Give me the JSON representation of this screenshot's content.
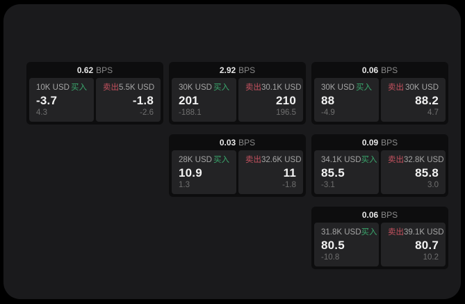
{
  "labels": {
    "buy": "买入",
    "sell": "卖出",
    "bps_unit": "BPS"
  },
  "colors": {
    "background_outer": "#000000",
    "window_background": "#1a1a1c",
    "card_background": "#0d0d0e",
    "panel_background": "#232325",
    "buy_green": "#3aa76d",
    "sell_red": "#c5525f"
  },
  "cards": [
    {
      "bps": "0.62",
      "buy": {
        "size": "10K USD",
        "price": "-3.7",
        "sub": "4.3"
      },
      "sell": {
        "size": "5.5K USD",
        "price": "-1.8",
        "sub": "-2.6"
      }
    },
    {
      "bps": "2.92",
      "buy": {
        "size": "30K USD",
        "price": "201",
        "sub": "-188.1"
      },
      "sell": {
        "size": "30.1K USD",
        "price": "210",
        "sub": "196.5"
      }
    },
    {
      "bps": "0.06",
      "buy": {
        "size": "30K USD",
        "price": "88",
        "sub": "-4.9"
      },
      "sell": {
        "size": "30K USD",
        "price": "88.2",
        "sub": "4.7"
      }
    },
    {
      "bps": "0.03",
      "buy": {
        "size": "28K USD",
        "price": "10.9",
        "sub": "1.3"
      },
      "sell": {
        "size": "32.6K USD",
        "price": "11",
        "sub": "-1.8"
      }
    },
    {
      "bps": "0.09",
      "buy": {
        "size": "34.1K USD",
        "price": "85.5",
        "sub": "-3.1"
      },
      "sell": {
        "size": "32.8K USD",
        "price": "85.8",
        "sub": "3.0"
      }
    },
    {
      "bps": "0.06",
      "buy": {
        "size": "31.8K USD",
        "price": "80.5",
        "sub": "-10.8"
      },
      "sell": {
        "size": "39.1K USD",
        "price": "80.7",
        "sub": "10.2"
      }
    }
  ]
}
